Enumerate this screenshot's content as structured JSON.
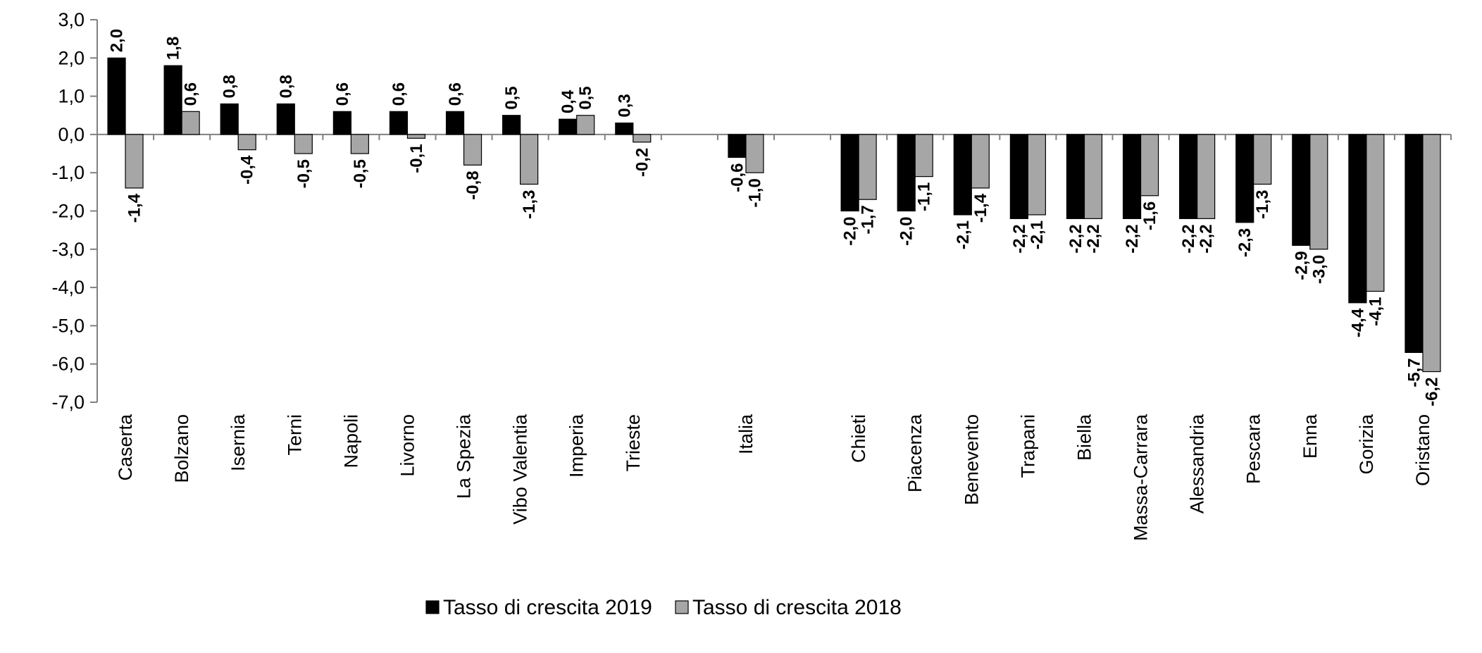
{
  "chart_data": {
    "type": "bar",
    "categories": [
      "Caserta",
      "Bolzano",
      "Isernia",
      "Terni",
      "Napoli",
      "Livorno",
      "La Spezia",
      "Vibo Valentia",
      "Imperia",
      "Trieste",
      "",
      "Italia",
      "",
      "Chieti",
      "Piacenza",
      "Benevento",
      "Trapani",
      "Biella",
      "Massa-Carrara",
      "Alessandria",
      "Pescara",
      "Enna",
      "Gorizia",
      "Oristano"
    ],
    "series": [
      {
        "name": "Tasso di crescita 2019",
        "color": "#000000",
        "values": [
          2.0,
          1.8,
          0.8,
          0.8,
          0.6,
          0.6,
          0.6,
          0.5,
          0.4,
          0.3,
          null,
          -0.6,
          null,
          -2.0,
          -2.0,
          -2.1,
          -2.2,
          -2.2,
          -2.2,
          -2.2,
          -2.3,
          -2.9,
          -4.4,
          -5.7
        ],
        "labels": [
          "2,0",
          "1,8",
          "0,8",
          "0,8",
          "0,6",
          "0,6",
          "0,6",
          "0,5",
          "0,4",
          "0,3",
          "",
          "-0,6",
          "",
          "-2,0",
          "-2,0",
          "-2,1",
          "-2,2",
          "-2,2",
          "-2,2",
          "-2,2",
          "-2,3",
          "-2,9",
          "-4,4",
          "-5,7"
        ]
      },
      {
        "name": "Tasso di crescita 2018",
        "color": "#a6a6a6",
        "values": [
          -1.4,
          0.6,
          -0.4,
          -0.5,
          -0.5,
          -0.1,
          -0.8,
          -1.3,
          0.5,
          -0.2,
          null,
          -1.0,
          null,
          -1.7,
          -1.1,
          -1.4,
          -2.1,
          -2.2,
          -1.6,
          -2.2,
          -1.3,
          -3.0,
          -4.1,
          -6.2
        ],
        "labels": [
          "-1,4",
          "0,6",
          "-0,4",
          "-0,5",
          "-0,5",
          "-0,1",
          "-0,8",
          "-1,3",
          "0,5",
          "-0,2",
          "",
          "-1,0",
          "",
          "-1,7",
          "-1,1",
          "-1,4",
          "-2,1",
          "-2,2",
          "-1,6",
          "-2,2",
          "-1,3",
          "-3,0",
          "-4,1",
          "-6,2"
        ]
      }
    ],
    "ylim": [
      -7.0,
      3.0
    ],
    "yticks": [
      3.0,
      2.0,
      1.0,
      0.0,
      -1.0,
      -2.0,
      -3.0,
      -4.0,
      -5.0,
      -6.0,
      -7.0
    ],
    "ytick_labels": [
      "3,0",
      "2,0",
      "1,0",
      "0,0",
      "-1,0",
      "-2,0",
      "-3,0",
      "-4,0",
      "-5,0",
      "-6,0",
      "-7,0"
    ],
    "grid": false,
    "legend_position": "bottom-center"
  }
}
